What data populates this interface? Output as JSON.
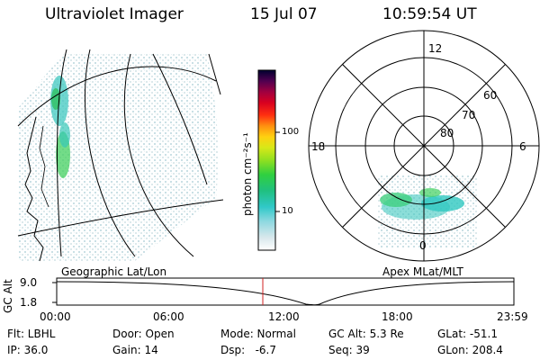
{
  "header": {
    "title": "Ultraviolet Imager",
    "date": "15 Jul 07",
    "time": "10:59:54 UT"
  },
  "colorbar": {
    "unit_label": "photon cm⁻²s⁻¹",
    "tick_labels": [
      "100",
      "10"
    ]
  },
  "polar_plot": {
    "mlt_labels": {
      "top": "12",
      "left": "18",
      "right": "6",
      "bottom": "0"
    },
    "lat_labels": [
      "60",
      "70",
      "80"
    ]
  },
  "strip": {
    "left_title": "Geographic Lat/Lon",
    "right_title": "Apex MLat/MLT",
    "ylabel": "GC Alt",
    "y_ticks": [
      "9.0",
      "1.8"
    ],
    "time_ticks": [
      "00:00",
      "06:00",
      "12:00",
      "18:00",
      "23:59"
    ]
  },
  "info": {
    "row1": [
      "Flt: LBHL",
      "Door: Open",
      "Mode: Normal",
      "GC Alt: 5.3 Re",
      "GLat: -51.1"
    ],
    "row2": [
      "IP: 36.0",
      "Gain: 14",
      "Dsp:   -6.7",
      "Seq: 39",
      "GLon: 208.4"
    ]
  }
}
